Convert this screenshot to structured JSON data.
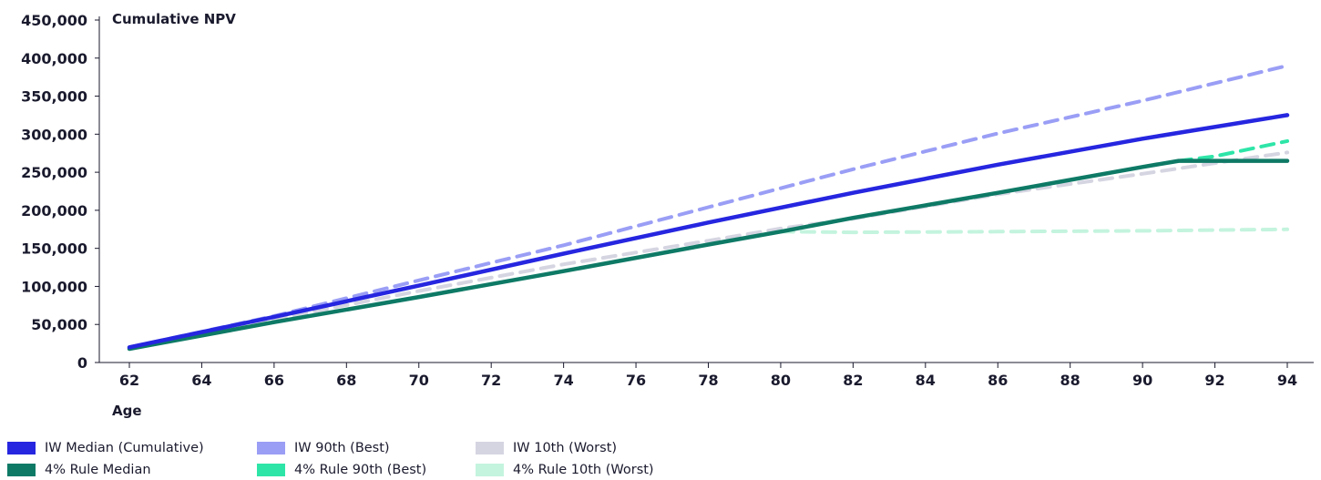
{
  "chart_data": {
    "type": "line",
    "ylabel": "Cumulative NPV",
    "xlabel": "Age",
    "xlim": [
      62,
      94
    ],
    "ylim": [
      0,
      450000
    ],
    "x_ticks": [
      "62",
      "64",
      "66",
      "68",
      "70",
      "72",
      "74",
      "76",
      "78",
      "80",
      "82",
      "84",
      "86",
      "88",
      "90",
      "92",
      "94"
    ],
    "y_ticks": [
      "0",
      "50,000",
      "100,000",
      "150,000",
      "200,000",
      "250,000",
      "300,000",
      "350,000",
      "400,000",
      "450,000"
    ],
    "grid": false,
    "legend_position": "bottom-left",
    "series": [
      {
        "name": "IW 90th (Best)",
        "color": "#9a9ef5",
        "dashed": true,
        "x": [
          62,
          66,
          70,
          74,
          78,
          82,
          86,
          90,
          94
        ],
        "values": [
          20000,
          61000,
          108000,
          154000,
          204000,
          254000,
          301000,
          344000,
          390000
        ]
      },
      {
        "name": "IW 10th (Worst)",
        "color": "#d5d5e2",
        "dashed": true,
        "x": [
          62,
          66,
          70,
          74,
          78,
          80,
          82,
          86,
          90,
          94
        ],
        "values": [
          20000,
          57000,
          94000,
          129000,
          160000,
          176000,
          189000,
          221000,
          248000,
          276000
        ]
      },
      {
        "name": "4% Rule 10th (Worst)",
        "color": "#c4f4de",
        "dashed": true,
        "x": [
          80,
          82,
          86,
          90,
          94
        ],
        "values": [
          172000,
          171000,
          172000,
          173000,
          175000
        ]
      },
      {
        "name": "4% Rule 90th (Best)",
        "color": "#2ee5a8",
        "dashed": true,
        "x": [
          91,
          92,
          94
        ],
        "values": [
          265000,
          271000,
          291000
        ]
      },
      {
        "name": "4% Rule Median",
        "color": "#0e7a66",
        "dashed": false,
        "x": [
          62,
          66,
          70,
          74,
          78,
          80,
          82,
          86,
          90,
          91,
          94
        ],
        "values": [
          18000,
          53000,
          86000,
          120000,
          155000,
          172000,
          190000,
          223000,
          257000,
          265000,
          265000
        ]
      },
      {
        "name": "IW Median (Cumulative)",
        "color": "#2626e0",
        "dashed": false,
        "x": [
          62,
          66,
          70,
          74,
          78,
          82,
          86,
          90,
          94
        ],
        "values": [
          20000,
          60000,
          101000,
          143000,
          184000,
          223000,
          260000,
          294000,
          325000
        ]
      }
    ],
    "legend": [
      {
        "label": "IW Median (Cumulative)",
        "color": "#2626e0"
      },
      {
        "label": "IW 90th (Best)",
        "color": "#9a9ef5"
      },
      {
        "label": "IW 10th (Worst)",
        "color": "#d5d5e2"
      },
      {
        "label": "4% Rule Median",
        "color": "#0e7a66"
      },
      {
        "label": "4% Rule 90th (Best)",
        "color": "#2ee5a8"
      },
      {
        "label": "4% Rule 10th (Worst)",
        "color": "#c4f4de"
      }
    ]
  }
}
